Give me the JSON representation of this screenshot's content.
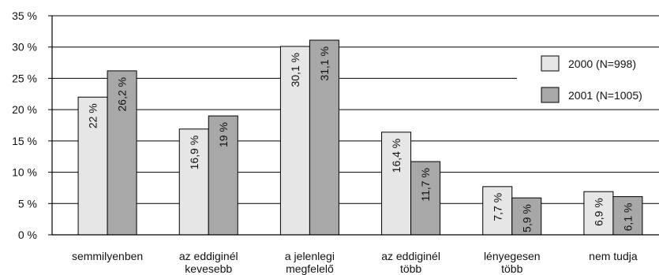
{
  "chart_data": {
    "type": "bar",
    "categories": [
      [
        "semmilyenben"
      ],
      [
        "az eddiginél",
        "kevesebb"
      ],
      [
        "a jelenlegi",
        "megfelelő"
      ],
      [
        "az eddiginél",
        "több"
      ],
      [
        "lényegesen",
        "több"
      ],
      [
        "nem tudja"
      ]
    ],
    "series": [
      {
        "name": "2000 (N=998)",
        "color": "#e6e6e6",
        "values": [
          22,
          16.9,
          30.1,
          16.4,
          7.7,
          6.9
        ],
        "labels": [
          "22 %",
          "16,9 %",
          "30,1 %",
          "16,4 %",
          "7,7 %",
          "6,9 %"
        ]
      },
      {
        "name": "2001 (N=1005)",
        "color": "#a8a8a8",
        "values": [
          26.2,
          19,
          31.1,
          11.7,
          5.9,
          6.1
        ],
        "labels": [
          "26,2 %",
          "19 %",
          "31,1 %",
          "11,7 %",
          "5,9 %",
          "6,1 %"
        ]
      }
    ],
    "ylim": [
      0,
      35
    ],
    "yticks": [
      0,
      5,
      10,
      15,
      20,
      25,
      30,
      35
    ],
    "ytick_labels": [
      "0 %",
      "5 %",
      "10 %",
      "15 %",
      "20 %",
      "25 %",
      "30 %",
      "35 %"
    ],
    "grid": true,
    "legend": "right"
  }
}
